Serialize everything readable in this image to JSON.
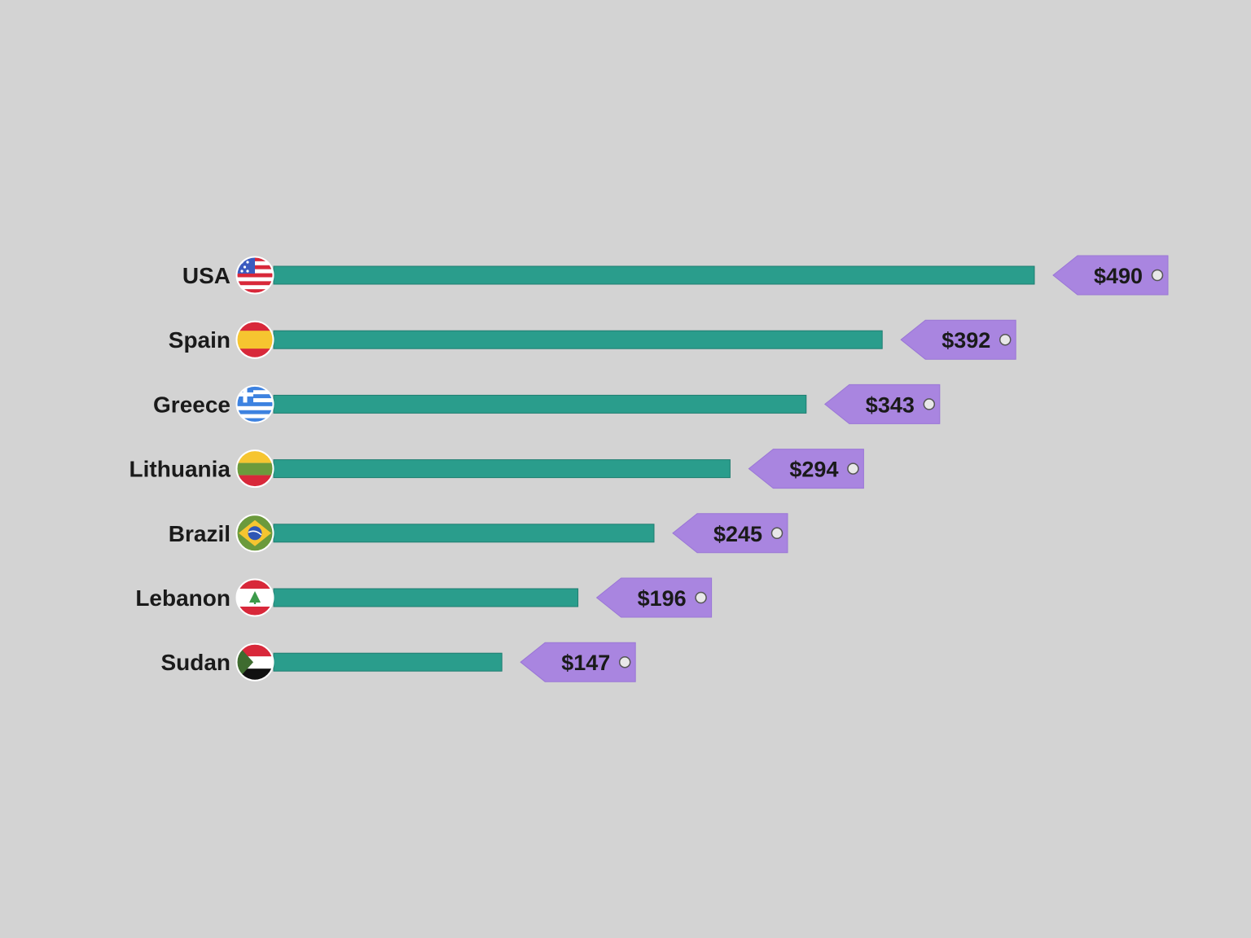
{
  "chart_data": {
    "type": "bar",
    "orientation": "horizontal",
    "title": "",
    "xlabel": "",
    "ylabel": "",
    "categories": [
      "USA",
      "Spain",
      "Greece",
      "Lithuania",
      "Brazil",
      "Lebanon",
      "Sudan"
    ],
    "values": [
      490,
      392,
      343,
      294,
      245,
      196,
      147
    ],
    "value_labels": [
      "$490",
      "$392",
      "$343",
      "$294",
      "$245",
      "$196",
      "$147"
    ],
    "flags": [
      "flag-usa-icon",
      "flag-spain-icon",
      "flag-greece-icon",
      "flag-lithuania-icon",
      "flag-brazil-icon",
      "flag-lebanon-icon",
      "flag-sudan-icon"
    ],
    "xlim": [
      0,
      490
    ],
    "grid": false,
    "legend": "none",
    "colors": {
      "background": "#d3d3d3",
      "bar": "#2a9d8c",
      "tag": "#a985e0",
      "text": "#1a1a1a"
    }
  }
}
